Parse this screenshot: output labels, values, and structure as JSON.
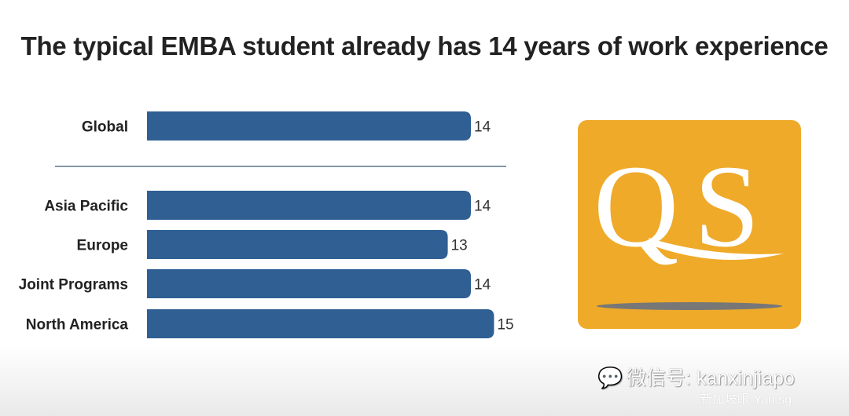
{
  "chart_data": {
    "type": "bar",
    "orientation": "horizontal",
    "title": "The typical EMBA student already has 14 years of work experience",
    "categories": [
      "Global",
      "Asia Pacific",
      "Europe",
      "Joint Programs",
      "North America"
    ],
    "values": [
      14,
      14,
      13,
      14,
      15
    ],
    "xlabel": "",
    "ylabel": "",
    "xlim": [
      0,
      15
    ],
    "grid": false,
    "bar_color": "#2f5f93"
  },
  "logo": {
    "text": "QS",
    "color": "#efaa2a"
  },
  "watermark": {
    "line1": "微信号: kanxinjiapo",
    "line2": "新加坡眼 Yan.sg"
  }
}
